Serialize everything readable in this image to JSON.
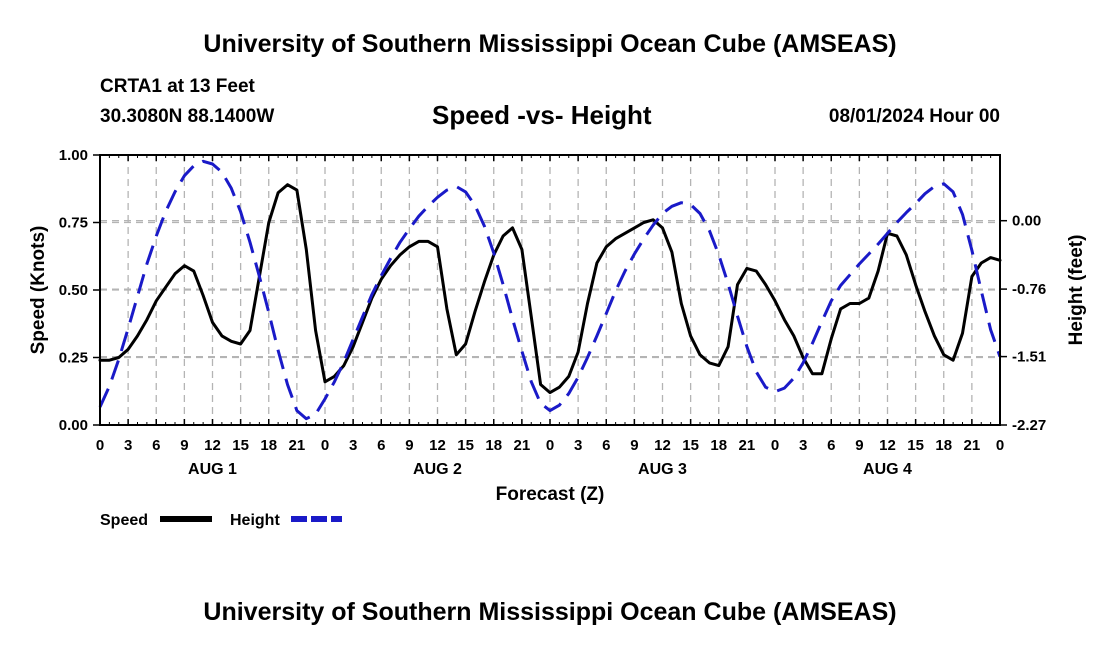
{
  "header": {
    "top_title": "University of Southern Mississippi Ocean Cube (AMSEAS)",
    "station": "CRTA1 at 13 Feet",
    "coords": "30.3080N  88.1400W",
    "date": "08/01/2024 Hour 00",
    "bottom_title": "University of Southern Mississippi Ocean Cube (AMSEAS)"
  },
  "colors": {
    "speed": "#000000",
    "height": "#1a1ac8",
    "grid": "#b4b4b4"
  },
  "chart_data": {
    "type": "line",
    "title": "Speed -vs- Height",
    "xlabel": "Forecast (Z)",
    "ylabel": "Speed (Knots)",
    "y2label": "Height (feet)",
    "x_unit": "hours since 08/01/2024 00Z",
    "xlim": [
      0,
      96
    ],
    "ylim": [
      0,
      1
    ],
    "y2lim": [
      -2.27,
      0.73
    ],
    "x_ticks": [
      0,
      3,
      6,
      9,
      12,
      15,
      18,
      21,
      24,
      27,
      30,
      33,
      36,
      39,
      42,
      45,
      48,
      51,
      54,
      57,
      60,
      63,
      66,
      69,
      72,
      75,
      78,
      81,
      84,
      87,
      90,
      93,
      96
    ],
    "x_tick_labels": [
      "0",
      "3",
      "6",
      "9",
      "12",
      "15",
      "18",
      "21",
      "0",
      "3",
      "6",
      "9",
      "12",
      "15",
      "18",
      "21",
      "0",
      "3",
      "6",
      "9",
      "12",
      "15",
      "18",
      "21",
      "0",
      "3",
      "6",
      "9",
      "12",
      "15",
      "18",
      "21",
      "0"
    ],
    "day_labels": [
      {
        "label": "AUG 1",
        "hour": 12
      },
      {
        "label": "AUG 2",
        "hour": 36
      },
      {
        "label": "AUG 3",
        "hour": 60
      },
      {
        "label": "AUG 4",
        "hour": 84
      }
    ],
    "y_ticks": [
      0,
      0.25,
      0.5,
      0.75,
      1
    ],
    "y_tick_labels": [
      "0.00",
      "0.25",
      "0.50",
      "0.75",
      "1.00"
    ],
    "y2_ticks": [
      -2.27,
      -1.51,
      -0.76,
      0
    ],
    "y2_tick_labels": [
      "-2.27",
      "-1.51",
      "-0.76",
      "0.00"
    ],
    "legend": [
      {
        "name": "Speed",
        "style": "solid"
      },
      {
        "name": "Height",
        "style": "dashed"
      }
    ],
    "series": [
      {
        "name": "Speed",
        "axis": "left",
        "x": [
          0,
          1,
          2,
          3,
          4,
          5,
          6,
          7,
          8,
          9,
          10,
          11,
          12,
          13,
          14,
          15,
          16,
          17,
          18,
          19,
          20,
          21,
          22,
          23,
          24,
          25,
          26,
          27,
          28,
          29,
          30,
          31,
          32,
          33,
          34,
          35,
          36,
          37,
          38,
          39,
          40,
          41,
          42,
          43,
          44,
          45,
          46,
          47,
          48,
          49,
          50,
          51,
          52,
          53,
          54,
          55,
          56,
          57,
          58,
          59,
          60,
          61,
          62,
          63,
          64,
          65,
          66,
          67,
          68,
          69,
          70,
          71,
          72,
          73,
          74,
          75,
          76,
          77,
          78,
          79,
          80,
          81,
          82,
          83,
          84,
          85,
          86,
          87,
          88,
          89,
          90,
          91,
          92,
          93,
          94,
          95,
          96
        ],
        "values": [
          0.24,
          0.24,
          0.25,
          0.28,
          0.33,
          0.39,
          0.46,
          0.51,
          0.56,
          0.59,
          0.57,
          0.48,
          0.38,
          0.33,
          0.31,
          0.3,
          0.35,
          0.55,
          0.75,
          0.86,
          0.89,
          0.87,
          0.65,
          0.35,
          0.16,
          0.18,
          0.22,
          0.29,
          0.38,
          0.47,
          0.54,
          0.59,
          0.63,
          0.66,
          0.68,
          0.68,
          0.66,
          0.43,
          0.26,
          0.3,
          0.42,
          0.53,
          0.63,
          0.7,
          0.73,
          0.65,
          0.4,
          0.15,
          0.12,
          0.14,
          0.18,
          0.27,
          0.45,
          0.6,
          0.66,
          0.69,
          0.71,
          0.73,
          0.75,
          0.76,
          0.73,
          0.64,
          0.45,
          0.33,
          0.26,
          0.23,
          0.22,
          0.29,
          0.52,
          0.58,
          0.57,
          0.52,
          0.46,
          0.39,
          0.33,
          0.25,
          0.19,
          0.19,
          0.32,
          0.43,
          0.45,
          0.45,
          0.47,
          0.57,
          0.71,
          0.7,
          0.63,
          0.52,
          0.42,
          0.33,
          0.26,
          0.24,
          0.34,
          0.55,
          0.6,
          0.62,
          0.61
        ]
      },
      {
        "name": "Height",
        "axis": "right",
        "x": [
          0,
          1,
          2,
          3,
          4,
          5,
          6,
          7,
          8,
          9,
          10,
          11,
          12,
          13,
          14,
          15,
          16,
          17,
          18,
          19,
          20,
          21,
          22,
          23,
          24,
          25,
          26,
          27,
          28,
          29,
          30,
          31,
          32,
          33,
          34,
          35,
          36,
          37,
          38,
          39,
          40,
          41,
          42,
          43,
          44,
          45,
          46,
          47,
          48,
          49,
          50,
          51,
          52,
          53,
          54,
          55,
          56,
          57,
          58,
          59,
          60,
          61,
          62,
          63,
          64,
          65,
          66,
          67,
          68,
          69,
          70,
          71,
          72,
          73,
          74,
          75,
          76,
          77,
          78,
          79,
          80,
          81,
          82,
          83,
          84,
          85,
          86,
          87,
          88,
          89,
          90,
          91,
          92,
          93,
          94,
          95,
          96
        ],
        "values": [
          -2.07,
          -1.84,
          -1.54,
          -1.2,
          -0.84,
          -0.48,
          -0.17,
          0.1,
          0.32,
          0.5,
          0.61,
          0.66,
          0.63,
          0.54,
          0.36,
          0.1,
          -0.24,
          -0.62,
          -1.02,
          -1.44,
          -1.82,
          -2.11,
          -2.2,
          -2.15,
          -1.98,
          -1.79,
          -1.57,
          -1.32,
          -1.07,
          -0.82,
          -0.61,
          -0.42,
          -0.24,
          -0.09,
          0.05,
          0.16,
          0.26,
          0.34,
          0.38,
          0.32,
          0.17,
          -0.06,
          -0.36,
          -0.71,
          -1.09,
          -1.45,
          -1.79,
          -2.03,
          -2.11,
          -2.05,
          -1.92,
          -1.74,
          -1.52,
          -1.28,
          -1.03,
          -0.78,
          -0.56,
          -0.37,
          -0.2,
          -0.05,
          0.08,
          0.16,
          0.2,
          0.18,
          0.08,
          -0.11,
          -0.38,
          -0.7,
          -1.06,
          -1.4,
          -1.68,
          -1.85,
          -1.9,
          -1.86,
          -1.75,
          -1.58,
          -1.36,
          -1.12,
          -0.89,
          -0.72,
          -0.6,
          -0.48,
          -0.37,
          -0.26,
          -0.14,
          -0.02,
          0.09,
          0.19,
          0.3,
          0.38,
          0.41,
          0.32,
          0.07,
          -0.33,
          -0.78,
          -1.21,
          -1.51
        ]
      }
    ]
  }
}
